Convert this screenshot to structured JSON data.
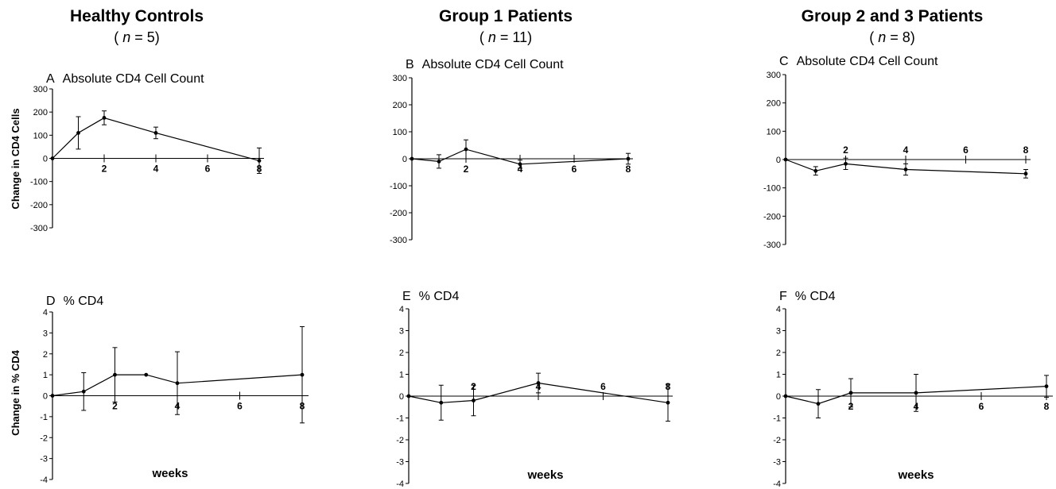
{
  "columns": [
    {
      "title": "Healthy Controls",
      "n_label": "5"
    },
    {
      "title": "Group 1 Patients",
      "n_label": "11"
    },
    {
      "title": "Group 2 and 3 Patients",
      "n_label": "8"
    }
  ],
  "ylabels": {
    "top": "Change in CD4 Cells",
    "bottom": "Change in % CD4"
  },
  "xlabel": "weeks",
  "colors": {
    "line": "#000000",
    "background": "#ffffff"
  },
  "chart_data": [
    {
      "id": "A",
      "type": "line",
      "title": "Absolute CD4 Cell Count",
      "ylim": [
        -300,
        300
      ],
      "yticks": [
        -300,
        -200,
        -100,
        0,
        100,
        200,
        300
      ],
      "xlim": [
        0,
        8
      ],
      "xticks": [
        2,
        4,
        6,
        8
      ],
      "x": [
        0,
        1,
        2,
        4,
        8
      ],
      "y": [
        0,
        110,
        175,
        110,
        -10
      ],
      "err": [
        0,
        70,
        30,
        25,
        55
      ]
    },
    {
      "id": "B",
      "type": "line",
      "title": "Absolute CD4 Cell Count",
      "ylim": [
        -300,
        300
      ],
      "yticks": [
        -300,
        -200,
        -100,
        0,
        100,
        200,
        300
      ],
      "xlim": [
        0,
        8
      ],
      "xticks": [
        2,
        4,
        6,
        8
      ],
      "x": [
        0,
        1,
        2,
        4,
        8
      ],
      "y": [
        0,
        -10,
        35,
        -20,
        0
      ],
      "err": [
        0,
        25,
        35,
        15,
        20
      ]
    },
    {
      "id": "C",
      "type": "line",
      "title": "Absolute CD4 Cell Count",
      "ylim": [
        -300,
        300
      ],
      "yticks": [
        -300,
        -200,
        -100,
        0,
        100,
        200,
        300
      ],
      "xlim": [
        0,
        8
      ],
      "xticks": [
        2,
        4,
        6,
        8
      ],
      "x": [
        0,
        1,
        2,
        4,
        8
      ],
      "y": [
        0,
        -40,
        -15,
        -35,
        -50
      ],
      "err": [
        0,
        15,
        20,
        20,
        15
      ]
    },
    {
      "id": "D",
      "type": "line",
      "title": "% CD4",
      "ylim": [
        -4,
        4
      ],
      "yticks": [
        -4,
        -3,
        -2,
        -1,
        0,
        1,
        2,
        3,
        4
      ],
      "xlim": [
        0,
        8
      ],
      "xticks": [
        2,
        4,
        6,
        8
      ],
      "x": [
        0,
        1,
        2,
        3,
        4,
        8
      ],
      "y": [
        0,
        0.2,
        1.0,
        1.0,
        0.6,
        1.0
      ],
      "err": [
        0,
        0.9,
        1.3,
        0,
        1.5,
        2.3
      ]
    },
    {
      "id": "E",
      "type": "line",
      "title": "% CD4",
      "ylim": [
        -4,
        4
      ],
      "yticks": [
        -4,
        -3,
        -2,
        -1,
        0,
        1,
        2,
        3,
        4
      ],
      "xlim": [
        0,
        8
      ],
      "xticks": [
        2,
        4,
        6,
        8
      ],
      "x": [
        0,
        1,
        2,
        4,
        8
      ],
      "y": [
        0,
        -0.3,
        -0.2,
        0.6,
        -0.3
      ],
      "err": [
        0,
        0.8,
        0.7,
        0.45,
        0.85
      ]
    },
    {
      "id": "F",
      "type": "line",
      "title": "% CD4",
      "ylim": [
        -4,
        4
      ],
      "yticks": [
        -4,
        -3,
        -2,
        -1,
        0,
        1,
        2,
        3,
        4
      ],
      "xlim": [
        0,
        8
      ],
      "xticks": [
        2,
        4,
        6,
        8
      ],
      "x": [
        0,
        1,
        2,
        4,
        8
      ],
      "y": [
        0,
        -0.35,
        0.15,
        0.15,
        0.45
      ],
      "err": [
        0,
        0.65,
        0.65,
        0.85,
        0.5
      ]
    }
  ]
}
